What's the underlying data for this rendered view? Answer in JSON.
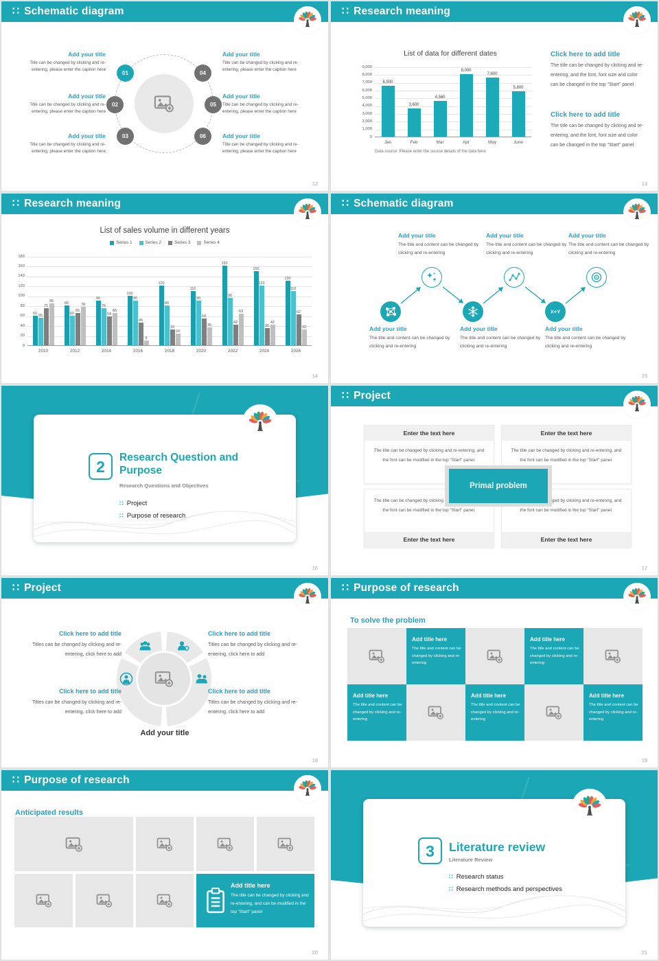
{
  "colors": {
    "primary_teal": "#1BA7B5",
    "accent_title": "#2B9FC6",
    "body_gray": "#595959",
    "bar_teal": "#1CA9B8",
    "bar_cyan": "#4AC0D0",
    "bar_gray_dark": "#7F7F7F",
    "bar_gray_light": "#BFBFBF",
    "node_gray": "#717171",
    "tile_gray": "#E7E7E7"
  },
  "icons": {
    "dots": "∷",
    "xy_label": "X+Y",
    "image_placeholder": "picture-with-plus",
    "logo": "colorful-tree-logo",
    "clipboard": "clipboard-list",
    "snowflake": "snowflake",
    "sparkles": "sparkles",
    "network": "network-nodes",
    "route": "route-dots",
    "spiral": "spiral-target",
    "people": "people-group",
    "person_gear": "person-with-gear",
    "person_ring": "person-in-circle"
  },
  "slide1": {
    "header": "Schematic diagram",
    "page": "12",
    "node_numbers": [
      "01",
      "02",
      "03",
      "04",
      "05",
      "06"
    ],
    "item_title": "Add your title",
    "item_caption": "Title can be changed by clicking and re-entering, please enter the caption here"
  },
  "slide2": {
    "header": "Research meaning",
    "page": "13",
    "block_title": "Click here to add title",
    "block_body": "The title can be changed by clicking and re-entering, and the font, font size and color can be changed in the top \"Start\" panel"
  },
  "slide3": {
    "header": "Research meaning",
    "page": "14"
  },
  "slide4": {
    "header": "Schematic diagram",
    "page": "15",
    "item_title": "Add your title",
    "item_body": "The title and content can be changed by clicking and re-entering"
  },
  "slide5": {
    "number": "2",
    "title": "Research Question and Purpose",
    "subtitle": "Research Questions and Objectives",
    "items": [
      "Project",
      "Purpose of research"
    ],
    "page": "16"
  },
  "slide6": {
    "header": "Project",
    "page": "17",
    "box_title": "Enter the text here",
    "box_body": "The title can be changed by clicking and re-entering, and the font can be modified in the top \"Start\" panel.",
    "center_label": "Primal problem"
  },
  "slide7": {
    "header": "Project",
    "page": "18",
    "block_title": "Click here to add title",
    "block_body": "Titles can be changed by clicking and re-entering, click here to add",
    "caption": "Add your title"
  },
  "slide8": {
    "header": "Purpose of research",
    "page": "19",
    "subtitle": "To solve the problem",
    "tile_title": "Add title here",
    "tile_body": "The title and content can be changed by clicking and re-entering"
  },
  "slide9": {
    "header": "Purpose of research",
    "page": "20",
    "subtitle": "Anticipated results",
    "tile_title": "Add title here",
    "tile_body": "The title can be changed by clicking and re-entering, and can be modified in the top \"Start\" panel"
  },
  "slide10": {
    "number": "3",
    "title": "Literature review",
    "subtitle": "Literature Review",
    "items": [
      "Research status",
      "Research methods and perspectives"
    ],
    "page": "21"
  },
  "chart_data": [
    {
      "type": "bar",
      "title": "List of data for different dates",
      "categories": [
        "Jan",
        "Feb",
        "Mar",
        "Apr",
        "May",
        "June"
      ],
      "values": [
        6500,
        3600,
        4560,
        8000,
        7600,
        5800
      ],
      "ylim": [
        0,
        9000
      ],
      "ytick_step": 1000,
      "color": "#1CA9B8",
      "grid": true,
      "xlabel": "",
      "ylabel": "",
      "source_note": "Data source: Please enter the source details of the data here"
    },
    {
      "type": "bar",
      "title": "List of sales volume in different years",
      "categories": [
        "2010",
        "2012",
        "2014",
        "2016",
        "2018",
        "2020",
        "2022",
        "2024",
        "2026"
      ],
      "series": [
        {
          "name": "Series 1",
          "values": [
            60,
            80,
            90,
            100,
            120,
            110,
            160,
            150,
            130
          ]
        },
        {
          "name": "Series 2",
          "values": [
            55,
            60,
            75,
            90,
            80,
            90,
            96,
            120,
            110
          ]
        },
        {
          "name": "Series 3",
          "values": [
            75,
            65,
            58,
            46,
            32,
            54,
            42,
            35,
            62
          ]
        },
        {
          "name": "Series 4",
          "values": [
            85,
            78,
            65,
            9,
            24,
            36,
            63,
            42,
            32
          ]
        }
      ],
      "colors": [
        "#1A9FAF",
        "#4AC0D0",
        "#7F7F7F",
        "#BFBFBF"
      ],
      "ylim": [
        0,
        180
      ],
      "ytick_step": 20,
      "grid": true,
      "legend_position": "top",
      "xlabel": "",
      "ylabel": ""
    }
  ]
}
